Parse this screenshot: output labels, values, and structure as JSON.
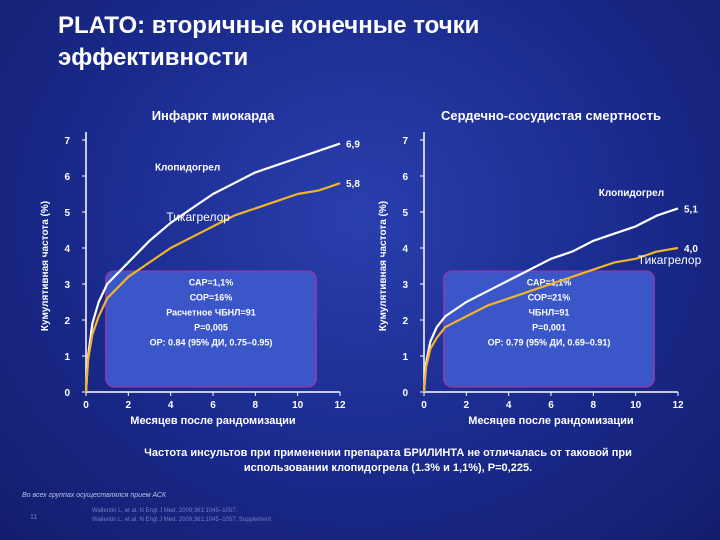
{
  "title_line1": "PLATO: вторичные конечные точки",
  "title_line2": "эффективности",
  "chart_data": [
    {
      "type": "line",
      "title": "Инфаркт миокарда",
      "ylabel": "Кумулятивная частота (%)",
      "xlabel": "Месяцев после рандомизации",
      "xlim": [
        0,
        12
      ],
      "ylim": [
        0,
        7
      ],
      "x_ticks": [
        "0",
        "2",
        "4",
        "6",
        "8",
        "10",
        "12"
      ],
      "y_ticks": [
        "0",
        "1",
        "2",
        "3",
        "4",
        "5",
        "6",
        "7"
      ],
      "series": [
        {
          "name": "Клопидогрел",
          "color": "#ffffff",
          "end_label": "6,9",
          "x": [
            0,
            0.1,
            0.3,
            0.6,
            1,
            2,
            3,
            4,
            5,
            6,
            7,
            8,
            9,
            10,
            11,
            12
          ],
          "y": [
            0,
            1.0,
            1.9,
            2.5,
            3.0,
            3.6,
            4.2,
            4.7,
            5.1,
            5.5,
            5.8,
            6.1,
            6.3,
            6.5,
            6.7,
            6.9
          ]
        },
        {
          "name": "Тикагрелор",
          "color": "#f0b428",
          "end_label": "5,8",
          "x": [
            0,
            0.1,
            0.3,
            0.6,
            1,
            2,
            3,
            4,
            5,
            6,
            7,
            8,
            9,
            10,
            11,
            12
          ],
          "y": [
            0,
            0.9,
            1.6,
            2.1,
            2.6,
            3.2,
            3.6,
            4.0,
            4.3,
            4.6,
            4.9,
            5.1,
            5.3,
            5.5,
            5.6,
            5.8
          ]
        }
      ],
      "stats": [
        "САР=1,1%",
        "СОР=16%",
        "Расчетное ЧБНЛ=91",
        "P=0,005",
        "ОР: 0.84 (95% ДИ, 0.75–0.95)"
      ]
    },
    {
      "type": "line",
      "title": "Сердечно-сосудистая смертность",
      "ylabel": "Кумулятивная частота (%)",
      "xlabel": "Месяцев после рандомизации",
      "xlim": [
        0,
        12
      ],
      "ylim": [
        0,
        7
      ],
      "x_ticks": [
        "0",
        "2",
        "4",
        "6",
        "8",
        "10",
        "12"
      ],
      "y_ticks": [
        "0",
        "1",
        "2",
        "3",
        "4",
        "5",
        "6",
        "7"
      ],
      "series": [
        {
          "name": "Клопидогрел",
          "color": "#ffffff",
          "end_label": "5,1",
          "x": [
            0,
            0.1,
            0.3,
            0.6,
            1,
            2,
            3,
            4,
            5,
            6,
            7,
            8,
            9,
            10,
            11,
            12
          ],
          "y": [
            0,
            0.8,
            1.4,
            1.8,
            2.1,
            2.5,
            2.8,
            3.1,
            3.4,
            3.7,
            3.9,
            4.2,
            4.4,
            4.6,
            4.9,
            5.1
          ]
        },
        {
          "name": "Тикагрелор",
          "color": "#f0b428",
          "end_label": "4,0",
          "x": [
            0,
            0.1,
            0.3,
            0.6,
            1,
            2,
            3,
            4,
            5,
            6,
            7,
            8,
            9,
            10,
            11,
            12
          ],
          "y": [
            0,
            0.7,
            1.2,
            1.5,
            1.8,
            2.1,
            2.4,
            2.6,
            2.8,
            3.0,
            3.2,
            3.4,
            3.6,
            3.7,
            3.9,
            4.0
          ]
        }
      ],
      "stats": [
        "САР=1,1%",
        "СОР=21%",
        "ЧБНЛ=91",
        "P=0,001",
        "ОР: 0.79 (95% ДИ, 0.69–0.91)"
      ]
    }
  ],
  "footer_line1": "Частота инсультов при применении препарата БРИЛИНТА не отличалась от таковой при",
  "footer_line2": "использовании клопидогрела (1.3% и 1,1%), P=0,225.",
  "footnote": "Во всех группах осуществлялся прием АСК",
  "refs": [
    "Wallentin L, et al. N Engl J Med. 2009;361:1045–1057.",
    "Wallentin L, et al. N Engl J Med. 2009;361:1045–1057. Supplement"
  ],
  "page_number": "11"
}
